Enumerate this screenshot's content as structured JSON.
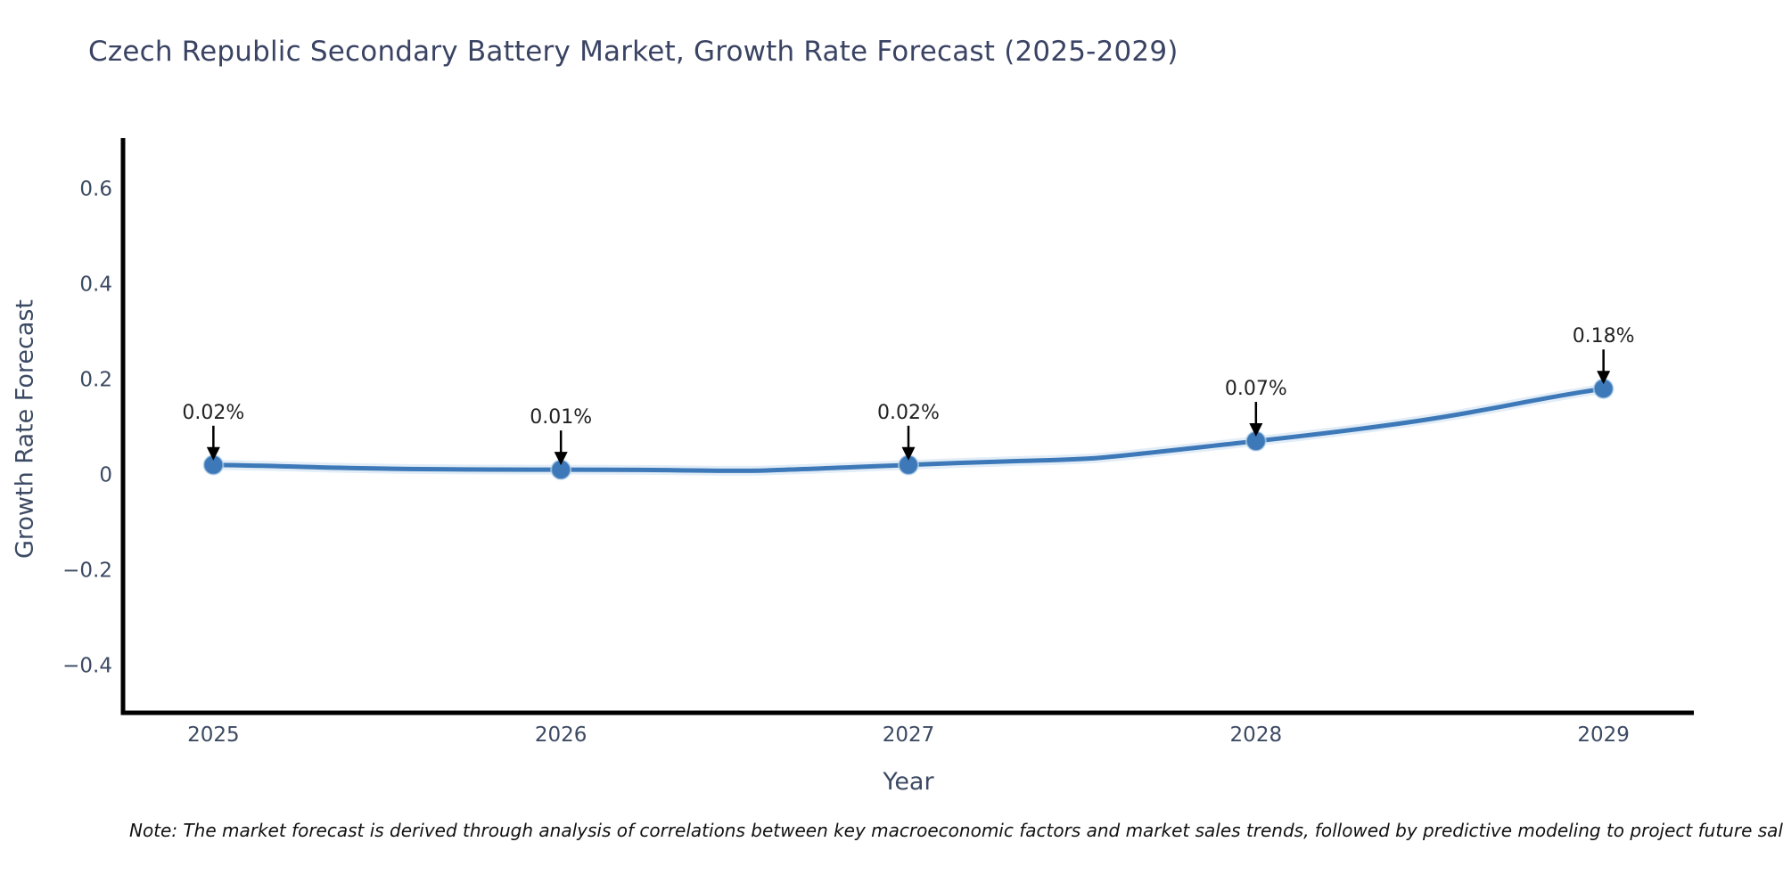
{
  "title": "Czech Republic Secondary Battery Market, Growth Rate Forecast (2025-2029)",
  "note": "Note: The market forecast is derived through analysis of correlations between key macroeconomic factors and market sales trends, followed by predictive modeling to project future sales.",
  "chart_data": {
    "type": "line",
    "title": "Czech Republic Secondary Battery Market, Growth Rate Forecast (2025-2029)",
    "xlabel": "Year",
    "ylabel": "Growth Rate Forecast",
    "x": [
      2025,
      2026,
      2027,
      2028,
      2029
    ],
    "xtick_labels": [
      "2025",
      "2026",
      "2027",
      "2028",
      "2029"
    ],
    "series": [
      {
        "name": "Growth Rate Forecast",
        "values": [
          0.02,
          0.01,
          0.02,
          0.07,
          0.18
        ],
        "point_labels": [
          "0.02%",
          "0.01%",
          "0.02%",
          "0.07%",
          "0.18%"
        ]
      }
    ],
    "yticks": [
      {
        "v": 0.6,
        "label": "0.6"
      },
      {
        "v": 0.4,
        "label": "0.4"
      },
      {
        "v": 0.2,
        "label": "0.2"
      },
      {
        "v": 0.0,
        "label": "0"
      },
      {
        "v": -0.2,
        "label": "−0.2"
      },
      {
        "v": -0.4,
        "label": "−0.4"
      }
    ],
    "ylim": [
      -0.5,
      0.7
    ],
    "xlim": [
      2024.74,
      2029.26
    ],
    "grid": false,
    "legend": "none",
    "annotations": "arrow-down-to-point",
    "colors": {
      "line": "#3d79b8",
      "line_glow": "#cadff1",
      "marker": "#3d79b8",
      "axis": "#000000",
      "tick_label": "#3c4a63",
      "title": "#3a4363",
      "annotation_text": "#222222",
      "arrow": "#000000",
      "background": "#ffffff"
    }
  }
}
